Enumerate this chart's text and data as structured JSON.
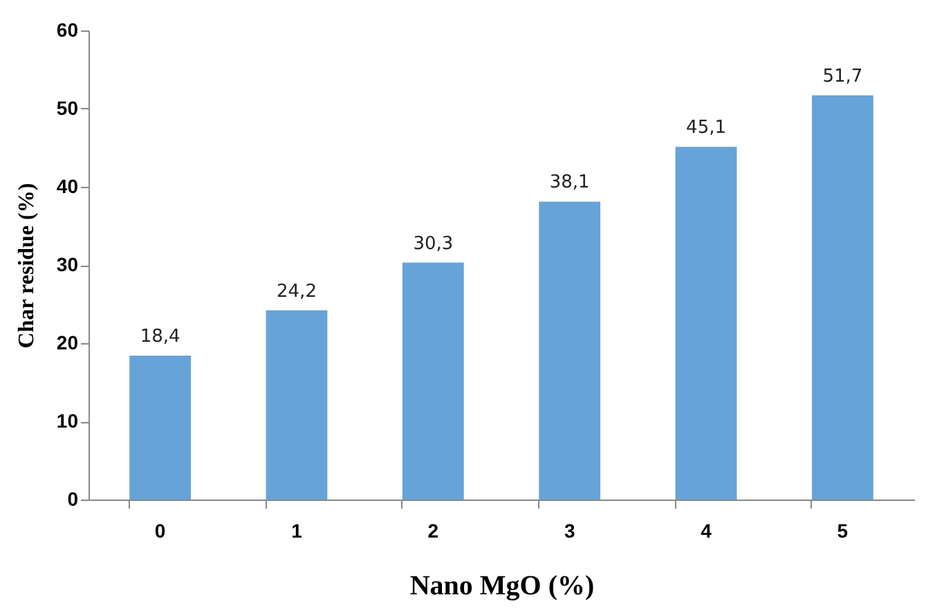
{
  "chart_data": {
    "type": "bar",
    "xlabel": "Nano MgO (%)",
    "ylabel": "Char residue (%)",
    "categories": [
      "0",
      "1",
      "2",
      "3",
      "4",
      "5"
    ],
    "values": [
      18.4,
      24.2,
      30.3,
      38.1,
      45.1,
      51.7
    ],
    "value_labels": [
      "18,4",
      "24,2",
      "30,3",
      "38,1",
      "45,1",
      "51,7"
    ],
    "color": "#66a3d9",
    "ylim": [
      0,
      60
    ],
    "yticks": [
      0,
      10,
      20,
      30,
      40,
      50,
      60
    ],
    "grid": false
  }
}
